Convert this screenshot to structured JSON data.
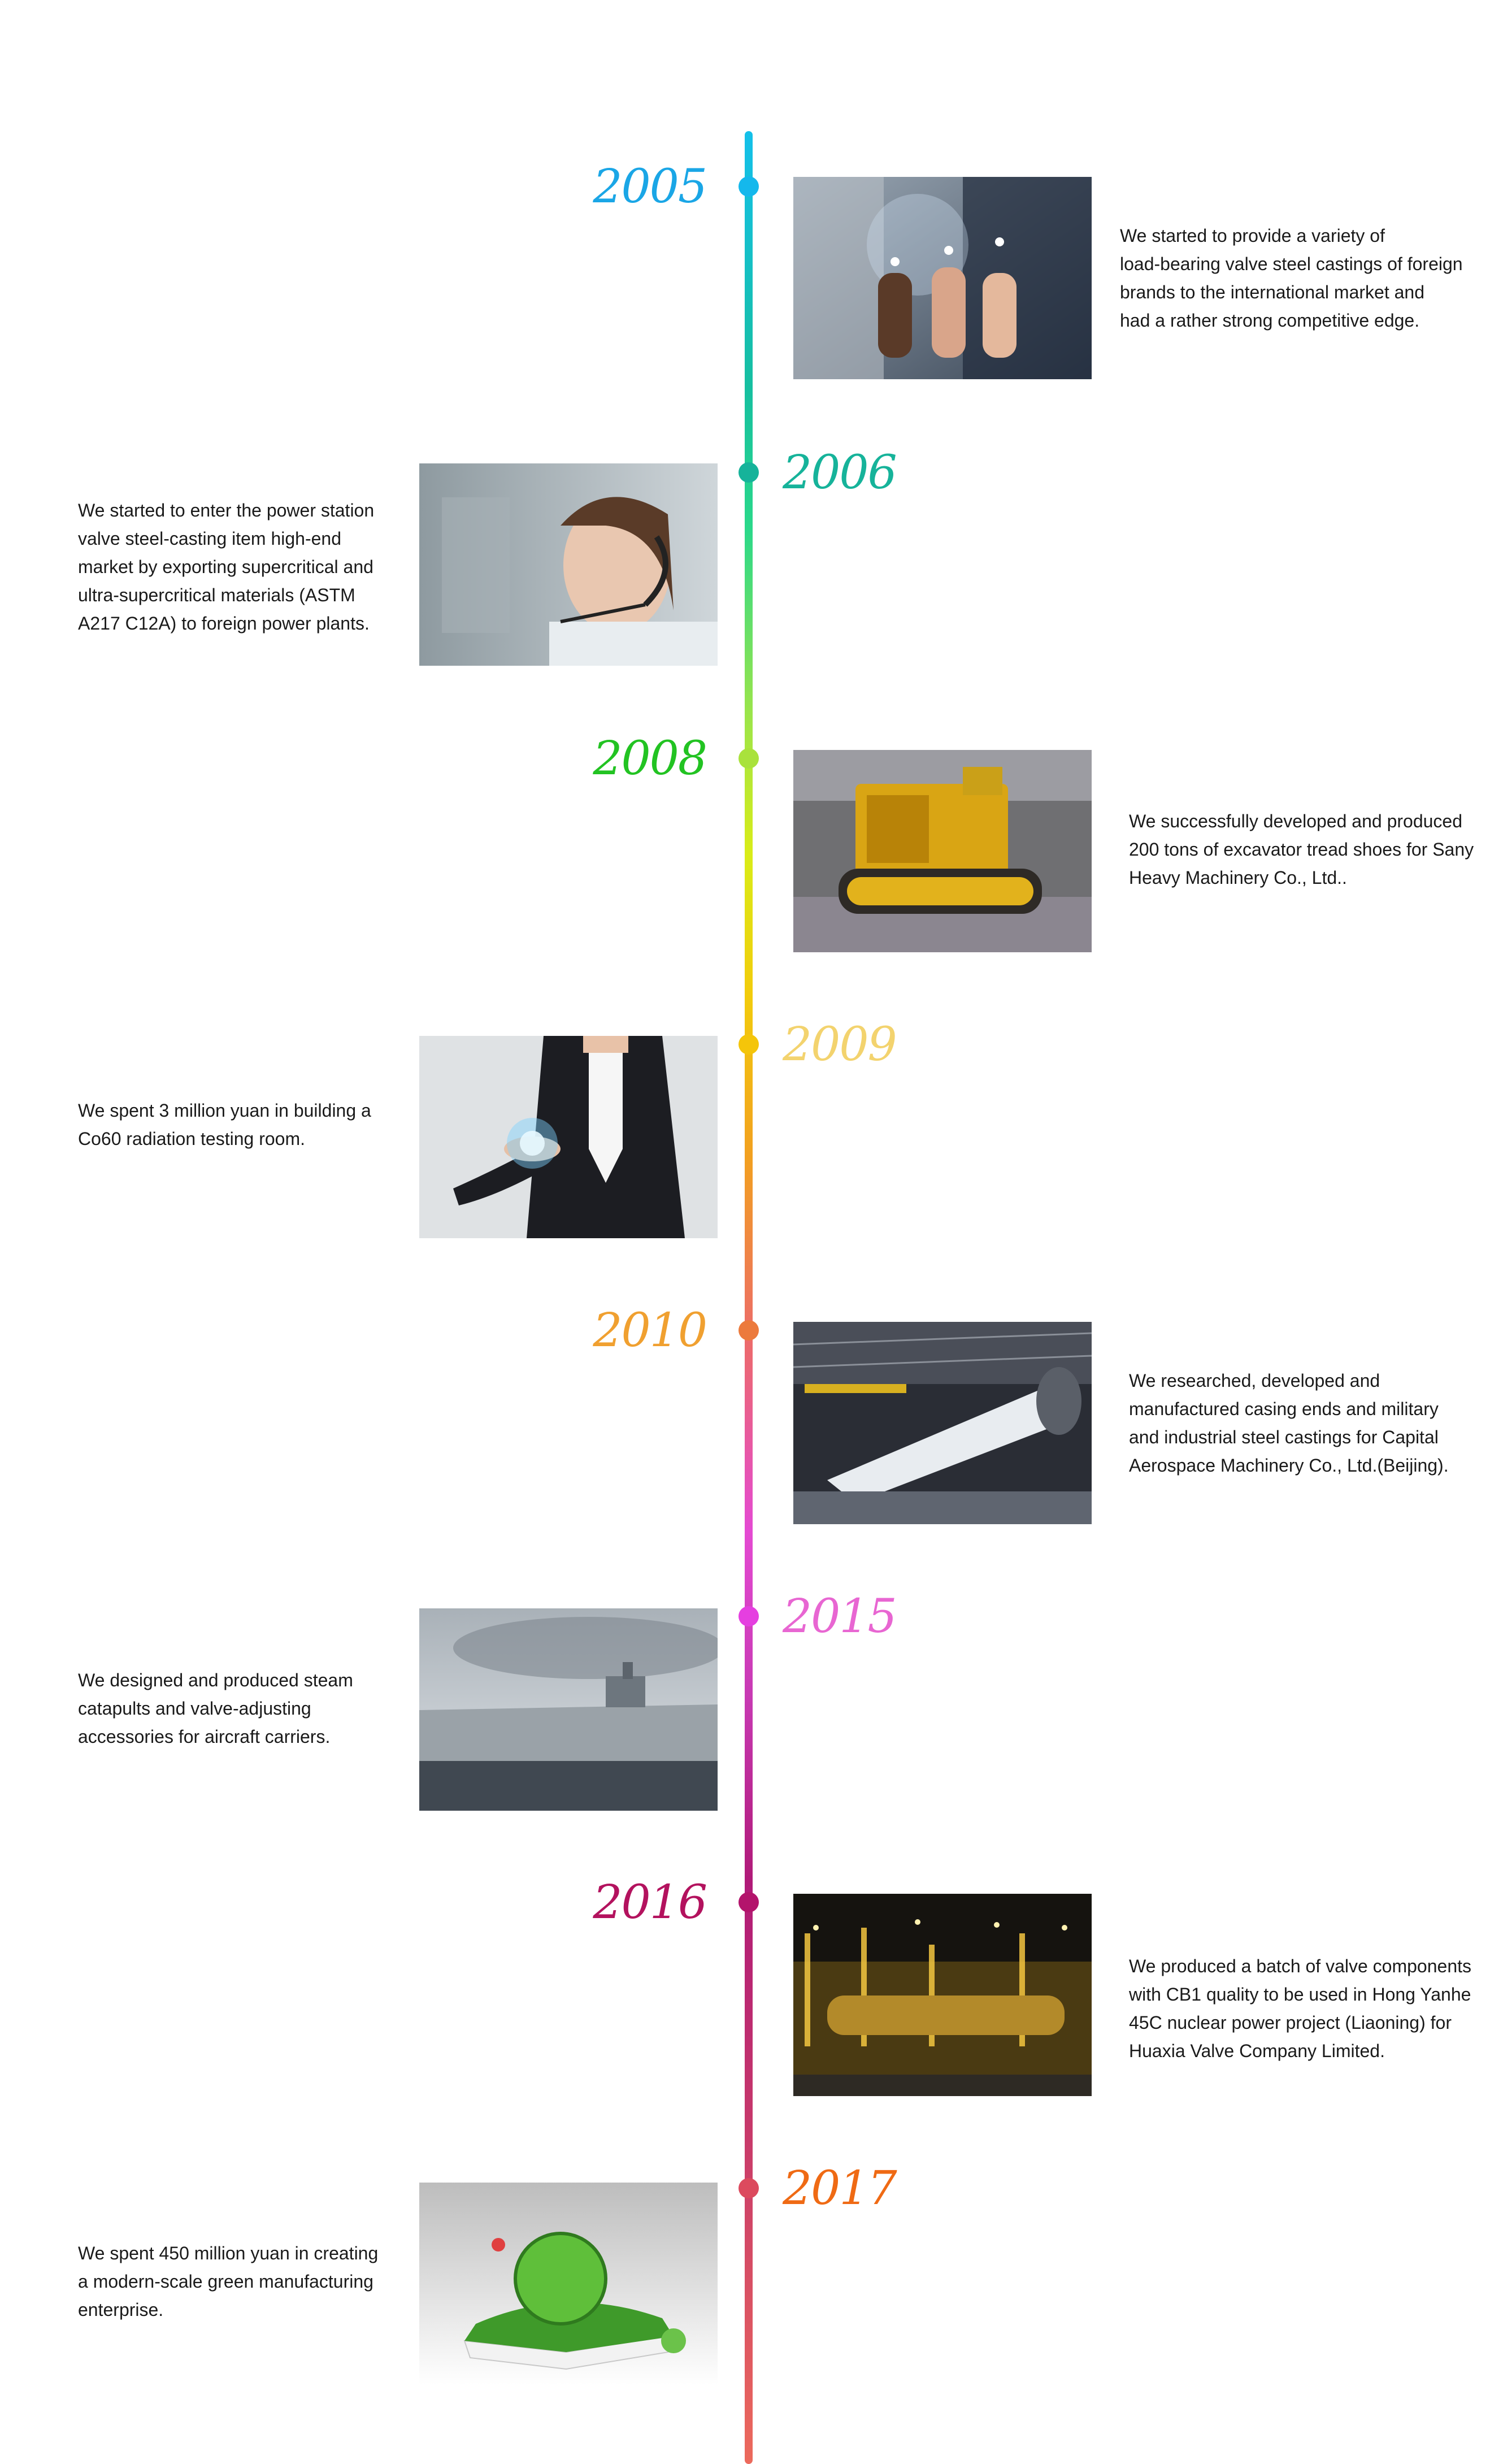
{
  "timeline": {
    "entries": [
      {
        "year": "2005",
        "color": "#1aa6e6",
        "image": "thumbs-up-business-people-photo",
        "text": "We started to provide a variety of\nload-bearing valve steel castings of foreign\n brands to the international market and\nhad a rather strong competitive edge."
      },
      {
        "year": "2006",
        "color": "#16b39a",
        "image": "customer-service-headset-woman-photo",
        "text": "We started to enter the power station\nvalve steel-casting item high-end\nmarket by exporting supercritical and\nultra-supercritical materials (ASTM\nA217 C12A) to foreign power plants."
      },
      {
        "year": "2008",
        "color": "#22c322",
        "image": "golden-bulldozer-photo",
        "text": "We successfully developed and produced\n200 tons of excavator tread shoes for Sany\nHeavy Machinery Co., Ltd.."
      },
      {
        "year": "2009",
        "color": "#f3d36e",
        "image": "businessman-glowing-hand-photo",
        "text": "We spent 3 million yuan in building a\nCo60 radiation testing room."
      },
      {
        "year": "2010",
        "color": "#f0a030",
        "image": "aerospace-hangar-rocket-photo",
        "text": "We researched, developed and\nmanufactured casing ends and military\nand industrial steel castings for Capital\nAerospace Machinery Co., Ltd.(Beijing)."
      },
      {
        "year": "2015",
        "color": "#e866d2",
        "image": "aircraft-carrier-photo",
        "text": "We designed and produced steam\ncatapults and valve-adjusting\naccessories for aircraft carriers."
      },
      {
        "year": "2016",
        "color": "#b3125e",
        "image": "nuclear-plant-night-photo",
        "text": "We produced a batch of valve components\nwith CB1 quality to be used in Hong Yanhe\n45C nuclear power project (Liaoning) for\nHuaxia Valve Company Limited."
      },
      {
        "year": "2017",
        "color": "#ef6a14",
        "image": "green-book-globe-photo",
        "text": "We spent 450 million yuan in creating\na modern-scale green manufacturing\nenterprise."
      }
    ]
  }
}
